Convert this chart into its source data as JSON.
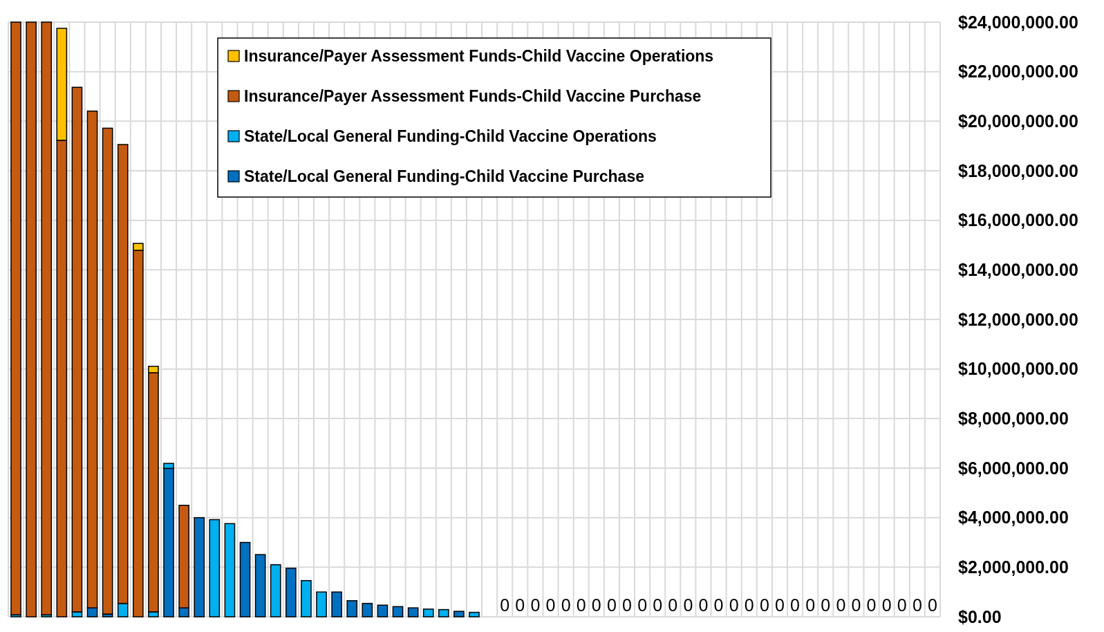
{
  "chart_data": {
    "type": "bar",
    "stacked": true,
    "categories": [
      null,
      null,
      null,
      null,
      null,
      null,
      null,
      null,
      null,
      null,
      null,
      null,
      null,
      null,
      null,
      null,
      null,
      null,
      null,
      null,
      null,
      null,
      null,
      null,
      null,
      null,
      null,
      null,
      null,
      null,
      null,
      null,
      null,
      null,
      null,
      null,
      null,
      null,
      null,
      null,
      null,
      null,
      null,
      null,
      null,
      null,
      null,
      null,
      null,
      null,
      null,
      null,
      null,
      null,
      null,
      null,
      null,
      null,
      null,
      null,
      null
    ],
    "series": [
      {
        "name": "State/Local General Funding-Child Vaccine Purchase",
        "color": "#0070c0",
        "values": [
          0,
          0,
          0,
          0,
          0,
          360000,
          110000,
          0,
          0,
          0,
          5990000,
          360000,
          4000000,
          0,
          0,
          3000000,
          2510000,
          0,
          1960000,
          0,
          0,
          1000000,
          650000,
          540000,
          470000,
          410000,
          360000,
          0,
          0,
          220000,
          0,
          0,
          0,
          0,
          0,
          0,
          0,
          0,
          0,
          0,
          0,
          0,
          0,
          0,
          0,
          0,
          0,
          0,
          0,
          0,
          0,
          0,
          0,
          0,
          0,
          0,
          0,
          0,
          0,
          0,
          0
        ],
        "value_labels": [
          null,
          null,
          null,
          null,
          null,
          null,
          null,
          null,
          null,
          null,
          null,
          null,
          null,
          null,
          null,
          null,
          null,
          null,
          null,
          null,
          null,
          null,
          null,
          null,
          null,
          null,
          null,
          null,
          null,
          null,
          null,
          null,
          "0",
          "0",
          "0",
          "0",
          "0",
          "0",
          "0",
          "0",
          "0",
          "0",
          "0",
          "0",
          "0",
          "0",
          "0",
          "0",
          "0",
          "0",
          "0",
          "0",
          "0",
          "0",
          "0",
          "0",
          "0",
          "0",
          "0",
          "0",
          "0"
        ]
      },
      {
        "name": "State/Local General Funding-Child Vaccine Operations",
        "color": "#00b0f0",
        "values": [
          80000,
          0,
          80000,
          0,
          200000,
          0,
          0,
          540000,
          0,
          200000,
          200000,
          0,
          0,
          3920000,
          3760000,
          0,
          0,
          2100000,
          0,
          1460000,
          1000000,
          0,
          0,
          0,
          0,
          0,
          0,
          310000,
          290000,
          0,
          180000,
          0,
          0,
          0,
          0,
          0,
          0,
          0,
          0,
          0,
          0,
          0,
          0,
          0,
          0,
          0,
          0,
          0,
          0,
          0,
          0,
          0,
          0,
          0,
          0,
          0,
          0,
          0,
          0,
          0,
          0
        ]
      },
      {
        "name": "Insurance/Payer Assessment Funds-Child Vaccine Purchase",
        "color": "#c55a11",
        "values": [
          23920000,
          24000000,
          23920000,
          19230000,
          21170000,
          20050000,
          19610000,
          18520000,
          14790000,
          9650000,
          0,
          4140000,
          0,
          0,
          0,
          0,
          0,
          0,
          0,
          0,
          0,
          0,
          0,
          0,
          0,
          0,
          0,
          0,
          0,
          0,
          0,
          0,
          0,
          0,
          0,
          0,
          0,
          0,
          0,
          0,
          0,
          0,
          0,
          0,
          0,
          0,
          0,
          0,
          0,
          0,
          0,
          0,
          0,
          0,
          0,
          0,
          0,
          0,
          0,
          0,
          0
        ]
      },
      {
        "name": "Insurance/Payer Assessment Funds-Child Vaccine Operations",
        "color": "#ffc000",
        "values": [
          0,
          0,
          0,
          4520000,
          0,
          0,
          0,
          0,
          280000,
          260000,
          0,
          0,
          0,
          0,
          0,
          0,
          0,
          0,
          0,
          0,
          0,
          0,
          0,
          0,
          0,
          0,
          0,
          0,
          0,
          0,
          0,
          0,
          0,
          0,
          0,
          0,
          0,
          0,
          0,
          0,
          0,
          0,
          0,
          0,
          0,
          0,
          0,
          0,
          0,
          0,
          0,
          0,
          0,
          0,
          0,
          0,
          0,
          0,
          0,
          0,
          0
        ]
      }
    ],
    "ylim": [
      0,
      24000000
    ],
    "yticks": [
      {
        "value": 0,
        "label": "$0.00"
      },
      {
        "value": 2000000,
        "label": "$2,000,000.00"
      },
      {
        "value": 4000000,
        "label": "$4,000,000.00"
      },
      {
        "value": 6000000,
        "label": "$6,000,000.00"
      },
      {
        "value": 8000000,
        "label": "$8,000,000.00"
      },
      {
        "value": 10000000,
        "label": "$10,000,000.00"
      },
      {
        "value": 12000000,
        "label": "$12,000,000.00"
      },
      {
        "value": 14000000,
        "label": "$14,000,000.00"
      },
      {
        "value": 16000000,
        "label": "$16,000,000.00"
      },
      {
        "value": 18000000,
        "label": "$18,000,000.00"
      },
      {
        "value": 20000000,
        "label": "$20,000,000.00"
      },
      {
        "value": 22000000,
        "label": "$22,000,000.00"
      },
      {
        "value": 24000000,
        "label": "$24,000,000.00"
      }
    ],
    "grid": true,
    "legend": "top",
    "tick_labels": "y"
  }
}
